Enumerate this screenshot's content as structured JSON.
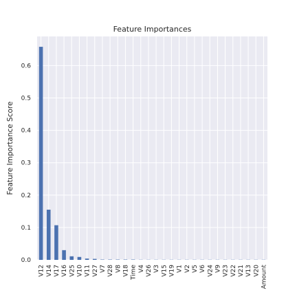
{
  "chart_data": {
    "type": "bar",
    "title": "Feature Importances",
    "xlabel": "",
    "ylabel": "Feature Importance Score",
    "categories": [
      "V12",
      "V14",
      "V17",
      "V16",
      "V25",
      "V10",
      "V11",
      "V27",
      "V7",
      "V28",
      "V8",
      "V18",
      "Time",
      "V4",
      "V26",
      "V3",
      "V15",
      "V19",
      "V1",
      "V2",
      "V5",
      "V6",
      "V24",
      "V9",
      "V23",
      "V22",
      "V21",
      "V13",
      "V20",
      "Amount"
    ],
    "values": [
      0.658,
      0.155,
      0.107,
      0.03,
      0.011,
      0.009,
      0.004,
      0.003,
      0.001,
      0.001,
      0.001,
      0.001,
      0.001,
      0.0005,
      0.0005,
      0.0005,
      0.0005,
      0.0005,
      0.0005,
      0.0005,
      0.0005,
      0.0005,
      0.0005,
      0.0005,
      0.0005,
      0.0005,
      0.0005,
      0.0005,
      0.0005,
      0.0005
    ],
    "yticks": [
      0.0,
      0.1,
      0.2,
      0.3,
      0.4,
      0.5,
      0.6
    ],
    "ylim": [
      0,
      0.69
    ],
    "grid": true,
    "colors": {
      "bar": "#4c72b0",
      "plot_bg": "#eaeaf2",
      "grid": "#ffffff"
    }
  }
}
